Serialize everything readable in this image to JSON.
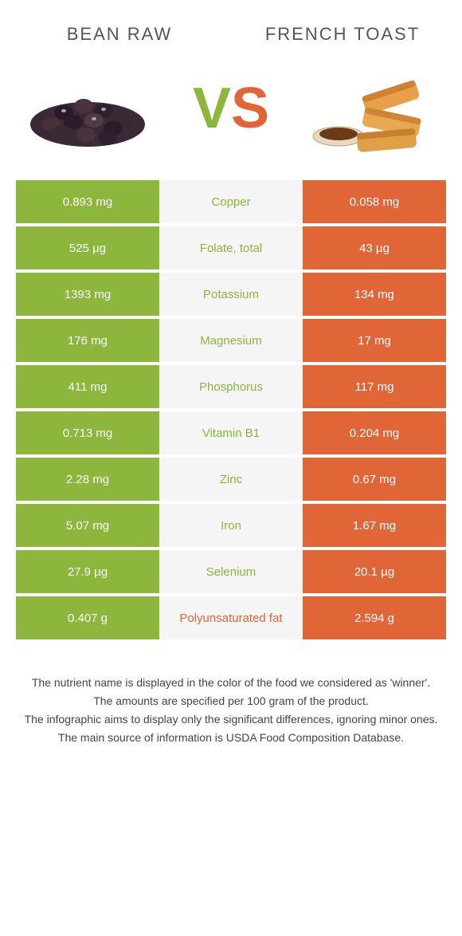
{
  "colors": {
    "green": "#8cb63c",
    "orange": "#e06638",
    "row_gap_bg": "#f5f5f5",
    "text": "#333333"
  },
  "header": {
    "left_title": "Bean raw",
    "right_title": "French toast"
  },
  "vs": {
    "v": "V",
    "s": "S"
  },
  "rows": [
    {
      "left": "0.893 mg",
      "label": "Copper",
      "right": "0.058 mg",
      "winner": "left"
    },
    {
      "left": "525 µg",
      "label": "Folate, total",
      "right": "43 µg",
      "winner": "left"
    },
    {
      "left": "1393 mg",
      "label": "Potassium",
      "right": "134 mg",
      "winner": "left"
    },
    {
      "left": "176 mg",
      "label": "Magnesium",
      "right": "17 mg",
      "winner": "left"
    },
    {
      "left": "411 mg",
      "label": "Phosphorus",
      "right": "117 mg",
      "winner": "left"
    },
    {
      "left": "0.713 mg",
      "label": "Vitamin B1",
      "right": "0.204 mg",
      "winner": "left"
    },
    {
      "left": "2.28 mg",
      "label": "Zinc",
      "right": "0.67 mg",
      "winner": "left"
    },
    {
      "left": "5.07 mg",
      "label": "Iron",
      "right": "1.67 mg",
      "winner": "left"
    },
    {
      "left": "27.9 µg",
      "label": "Selenium",
      "right": "20.1 µg",
      "winner": "left"
    },
    {
      "left": "0.407 g",
      "label": "Polyunsaturated fat",
      "right": "2.594 g",
      "winner": "right"
    }
  ],
  "footnotes": [
    "The nutrient name is displayed in the color of the food we considered as 'winner'.",
    "The amounts are specified per 100 gram of the product.",
    "The infographic aims to display only the significant differences, ignoring minor ones.",
    "The main source of information is USDA Food Composition Database."
  ]
}
